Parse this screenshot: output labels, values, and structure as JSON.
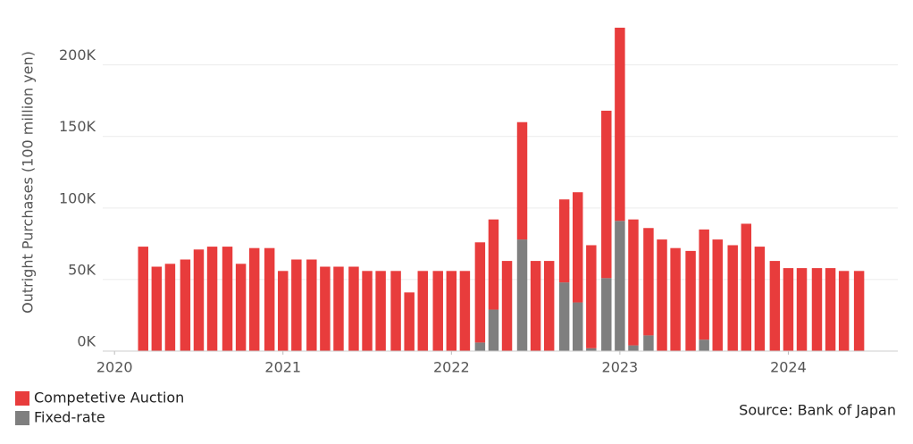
{
  "chart_data": {
    "type": "bar",
    "stacked": true,
    "y_label": "Outright Purchases (100 million yen)",
    "source": "Source: Bank of Japan",
    "x": [
      2020.17,
      2020.25,
      2020.33,
      2020.42,
      2020.5,
      2020.58,
      2020.67,
      2020.75,
      2020.83,
      2020.92,
      2021.0,
      2021.08,
      2021.17,
      2021.25,
      2021.33,
      2021.42,
      2021.5,
      2021.58,
      2021.67,
      2021.75,
      2021.83,
      2021.92,
      2022.0,
      2022.08,
      2022.17,
      2022.25,
      2022.33,
      2022.42,
      2022.5,
      2022.58,
      2022.67,
      2022.75,
      2022.83,
      2022.92,
      2023.0,
      2023.08,
      2023.17,
      2023.25,
      2023.33,
      2023.42,
      2023.5,
      2023.58,
      2023.67,
      2023.75,
      2023.83,
      2023.92,
      2024.0,
      2024.08,
      2024.17,
      2024.25,
      2024.33,
      2024.42
    ],
    "series": [
      {
        "name": "Competetive Auction",
        "color": "#e83c3c",
        "values": [
          73,
          59,
          61,
          64,
          71,
          73,
          73,
          61,
          72,
          72,
          56,
          64,
          64,
          59,
          59,
          59,
          56,
          56,
          56,
          41,
          56,
          56,
          56,
          56,
          70,
          63,
          63,
          82,
          63,
          63,
          58,
          77,
          72,
          117,
          135,
          88,
          75,
          78,
          72,
          70,
          77,
          78,
          74,
          89,
          73,
          63,
          58,
          58,
          58,
          58,
          56,
          56
        ]
      },
      {
        "name": "Fixed-rate",
        "color": "#7f7f7f",
        "values": [
          0,
          0,
          0,
          0,
          0,
          0,
          0,
          0,
          0,
          0,
          0,
          0,
          0,
          0,
          0,
          0,
          0,
          0,
          0,
          0,
          0,
          0,
          0,
          0,
          6,
          29,
          0,
          78,
          0,
          0,
          48,
          34,
          2,
          51,
          91,
          4,
          11,
          0,
          0,
          0,
          8,
          0,
          0,
          0,
          0,
          0,
          0,
          0,
          0,
          0,
          0,
          0
        ]
      }
    ],
    "xlim": [
      2019.93,
      2024.65
    ],
    "xticks": [
      2020,
      2021,
      2022,
      2023,
      2024
    ],
    "ylim": [
      0,
      236
    ],
    "yticks": [
      {
        "value": 0,
        "label": "0K"
      },
      {
        "value": 50,
        "label": "50K"
      },
      {
        "value": 100,
        "label": "100K"
      },
      {
        "value": 150,
        "label": "150K"
      },
      {
        "value": 200,
        "label": "200K"
      }
    ],
    "grid": true
  }
}
